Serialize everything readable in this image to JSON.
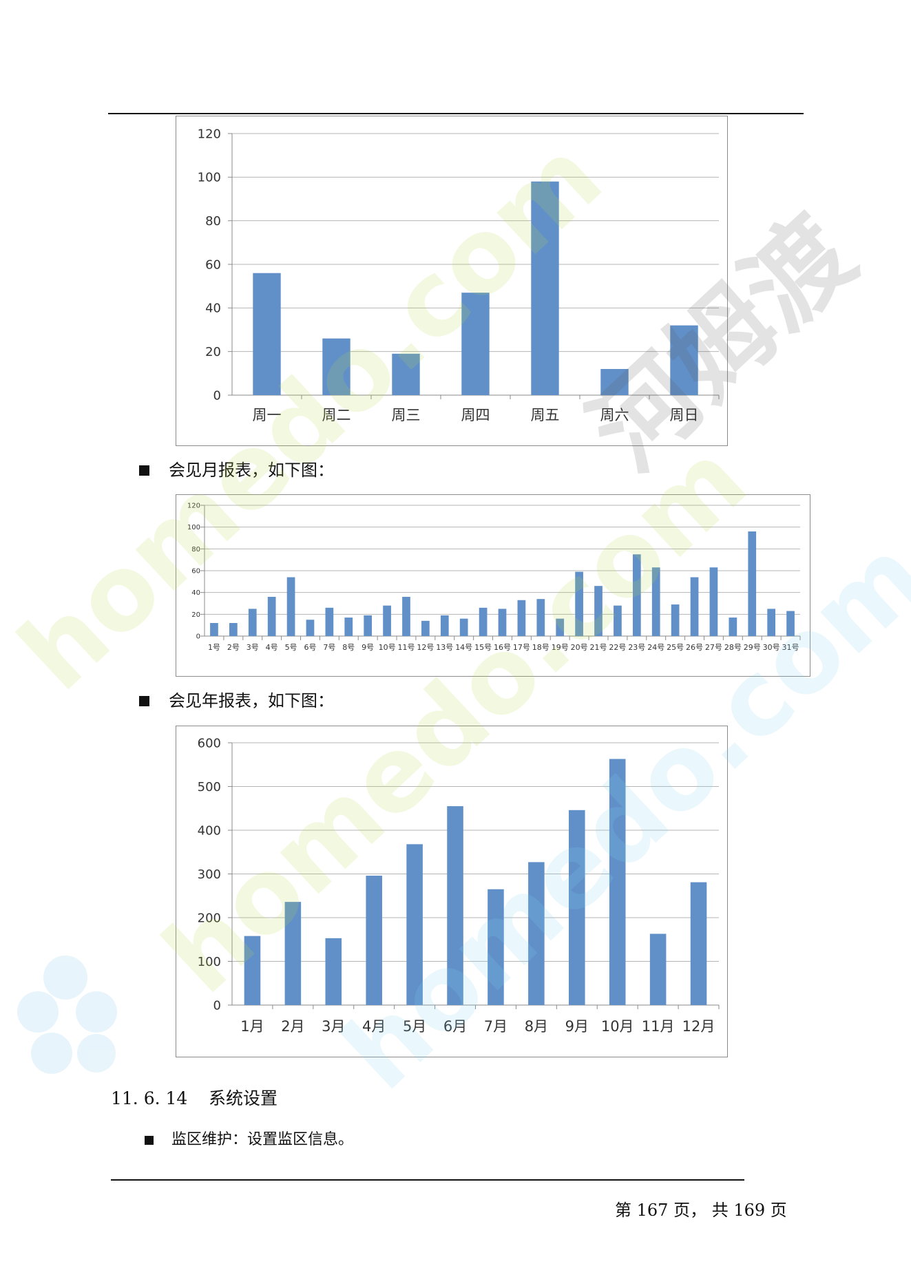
{
  "page": {
    "bullet_month": "会见月报表，如下图：",
    "bullet_year": "会见年报表，如下图：",
    "section_number": "11. 6. 14",
    "section_title": "系统设置",
    "bullet_monitor": "监区维护：设置监区信息。",
    "footer": "第 167 页， 共 169 页"
  },
  "colors": {
    "bar": "#6190c8",
    "grid": "#b5b5b5",
    "axis": "#8a8a8a"
  },
  "watermark": {
    "text": "homedo.com",
    "brand": "河姆渡"
  },
  "chart_data": [
    {
      "type": "bar",
      "categories": [
        "周一",
        "周二",
        "周三",
        "周四",
        "周五",
        "周六",
        "周日"
      ],
      "values": [
        56,
        26,
        19,
        47,
        98,
        12,
        32
      ],
      "ylim": [
        0,
        120
      ],
      "yticks": [
        0,
        20,
        40,
        60,
        80,
        100,
        120
      ],
      "grid": true,
      "title": "",
      "xlabel": "",
      "ylabel": ""
    },
    {
      "type": "bar",
      "categories": [
        "1号",
        "2号",
        "3号",
        "4号",
        "5号",
        "6号",
        "7号",
        "8号",
        "9号",
        "10号",
        "11号",
        "12号",
        "13号",
        "14号",
        "15号",
        "16号",
        "17号",
        "18号",
        "19号",
        "20号",
        "21号",
        "22号",
        "23号",
        "24号",
        "25号",
        "26号",
        "27号",
        "28号",
        "29号",
        "30号",
        "31号"
      ],
      "values": [
        12,
        12,
        25,
        36,
        54,
        15,
        26,
        17,
        19,
        28,
        36,
        14,
        19,
        16,
        26,
        25,
        33,
        34,
        16,
        59,
        46,
        28,
        75,
        63,
        29,
        54,
        63,
        17,
        96,
        25,
        23
      ],
      "ylim": [
        0,
        120
      ],
      "yticks": [
        0,
        20,
        40,
        60,
        80,
        100,
        120
      ],
      "grid": true,
      "title": "",
      "xlabel": "",
      "ylabel": ""
    },
    {
      "type": "bar",
      "categories": [
        "1月",
        "2月",
        "3月",
        "4月",
        "5月",
        "6月",
        "7月",
        "8月",
        "9月",
        "10月",
        "11月",
        "12月"
      ],
      "values": [
        158,
        236,
        153,
        296,
        368,
        455,
        265,
        327,
        446,
        563,
        163,
        281
      ],
      "ylim": [
        0,
        600
      ],
      "yticks": [
        0,
        100,
        200,
        300,
        400,
        500,
        600
      ],
      "grid": true,
      "title": "",
      "xlabel": "",
      "ylabel": ""
    }
  ]
}
